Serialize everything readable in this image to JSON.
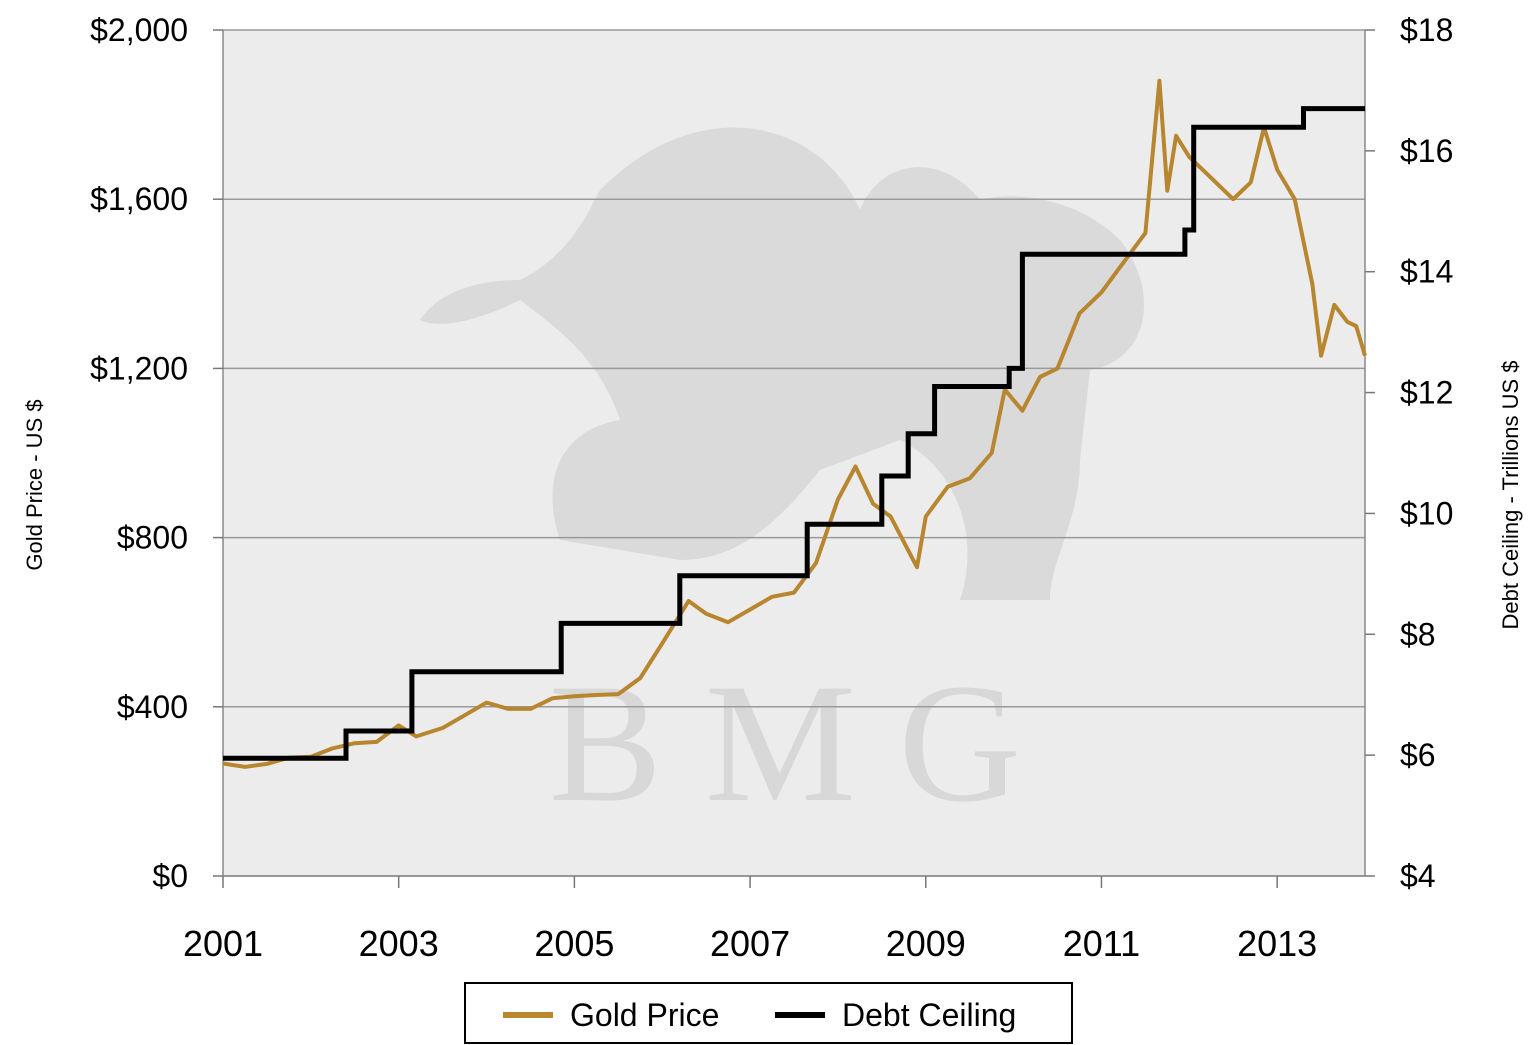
{
  "chart_data": {
    "type": "line",
    "title": "",
    "xlabel": "",
    "x_ticks": [
      "2001",
      "2003",
      "2005",
      "2007",
      "2009",
      "2011",
      "2013"
    ],
    "xlim": [
      2001,
      2014
    ],
    "y_left": {
      "label": "Gold Price - US $",
      "ticks": [
        "$0",
        "$400",
        "$800",
        "$1,200",
        "$1,600",
        "$2,000"
      ],
      "lim": [
        0,
        2000
      ]
    },
    "y_right": {
      "label": "Debt Ceiling - Trillions US $",
      "ticks": [
        "$4",
        "$6",
        "$8",
        "$10",
        "$12",
        "$14",
        "$16",
        "$18"
      ],
      "lim": [
        4,
        18
      ]
    },
    "grid": "horizontal",
    "legend_position": "bottom",
    "watermark": "B M G",
    "series": [
      {
        "name": "Gold Price",
        "axis": "left",
        "color": "#b8862e",
        "points": [
          [
            2001.0,
            266
          ],
          [
            2001.25,
            258
          ],
          [
            2001.5,
            265
          ],
          [
            2001.75,
            280
          ],
          [
            2002.0,
            282
          ],
          [
            2002.25,
            302
          ],
          [
            2002.5,
            314
          ],
          [
            2002.75,
            317
          ],
          [
            2003.0,
            356
          ],
          [
            2003.2,
            330
          ],
          [
            2003.5,
            350
          ],
          [
            2003.75,
            380
          ],
          [
            2004.0,
            410
          ],
          [
            2004.25,
            395
          ],
          [
            2004.5,
            395
          ],
          [
            2004.75,
            420
          ],
          [
            2005.0,
            425
          ],
          [
            2005.25,
            428
          ],
          [
            2005.5,
            430
          ],
          [
            2005.75,
            468
          ],
          [
            2006.0,
            550
          ],
          [
            2006.3,
            650
          ],
          [
            2006.5,
            620
          ],
          [
            2006.75,
            600
          ],
          [
            2007.0,
            630
          ],
          [
            2007.25,
            660
          ],
          [
            2007.5,
            670
          ],
          [
            2007.75,
            740
          ],
          [
            2008.0,
            890
          ],
          [
            2008.2,
            968
          ],
          [
            2008.4,
            880
          ],
          [
            2008.6,
            850
          ],
          [
            2008.8,
            770
          ],
          [
            2008.9,
            730
          ],
          [
            2009.0,
            850
          ],
          [
            2009.25,
            920
          ],
          [
            2009.5,
            940
          ],
          [
            2009.75,
            1000
          ],
          [
            2009.9,
            1150
          ],
          [
            2010.1,
            1100
          ],
          [
            2010.3,
            1180
          ],
          [
            2010.5,
            1200
          ],
          [
            2010.75,
            1330
          ],
          [
            2011.0,
            1380
          ],
          [
            2011.25,
            1450
          ],
          [
            2011.5,
            1520
          ],
          [
            2011.66,
            1880
          ],
          [
            2011.75,
            1620
          ],
          [
            2011.85,
            1750
          ],
          [
            2012.0,
            1700
          ],
          [
            2012.25,
            1650
          ],
          [
            2012.5,
            1600
          ],
          [
            2012.7,
            1640
          ],
          [
            2012.85,
            1770
          ],
          [
            2013.0,
            1670
          ],
          [
            2013.2,
            1600
          ],
          [
            2013.4,
            1400
          ],
          [
            2013.5,
            1230
          ],
          [
            2013.65,
            1350
          ],
          [
            2013.8,
            1310
          ],
          [
            2013.9,
            1300
          ],
          [
            2014.0,
            1230
          ]
        ]
      },
      {
        "name": "Debt Ceiling",
        "axis": "right",
        "color": "#000000",
        "steps": [
          [
            2001.0,
            5.95
          ],
          [
            2002.4,
            6.4
          ],
          [
            2003.15,
            7.38
          ],
          [
            2004.85,
            8.18
          ],
          [
            2006.2,
            8.97
          ],
          [
            2007.65,
            9.82
          ],
          [
            2008.5,
            10.62
          ],
          [
            2008.8,
            11.32
          ],
          [
            2009.1,
            12.1
          ],
          [
            2009.95,
            12.4
          ],
          [
            2010.1,
            14.29
          ],
          [
            2011.95,
            14.69
          ],
          [
            2012.05,
            16.39
          ],
          [
            2013.3,
            16.7
          ],
          [
            2014.0,
            16.7
          ]
        ]
      }
    ]
  }
}
